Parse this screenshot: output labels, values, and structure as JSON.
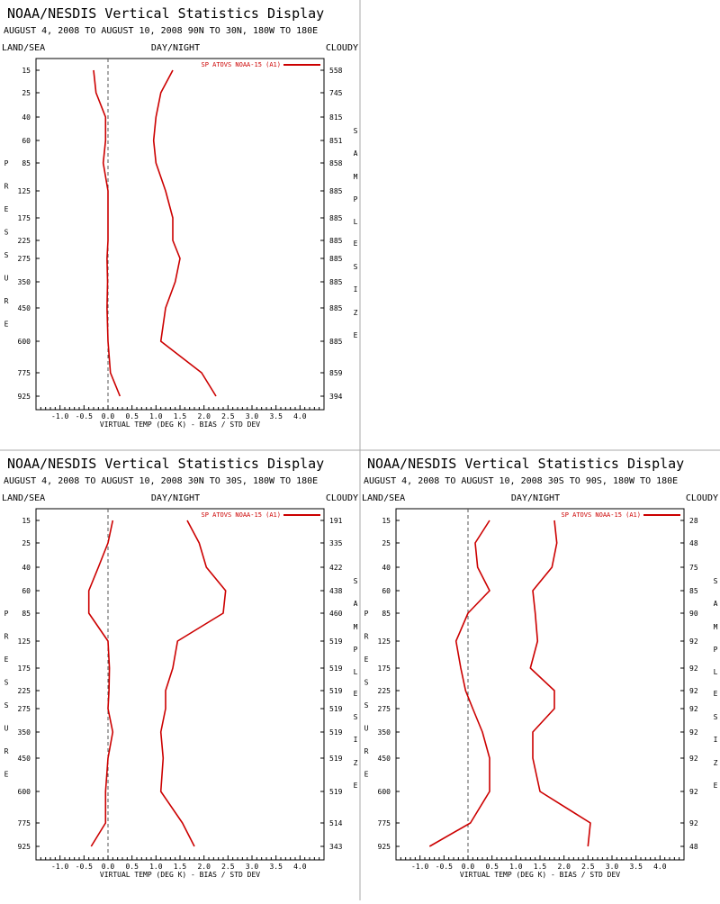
{
  "colors": {
    "series": "#cc0000",
    "axis": "#000000",
    "zero_line": "#555555",
    "divider": "#aaaaaa"
  },
  "panels": [
    {
      "title": "NOAA/NESDIS Vertical Statistics Display",
      "subtitle": "AUGUST 4, 2008 TO AUGUST 10, 2008  90N TO 30N, 180W TO 180E",
      "left_label": "LAND/SEA",
      "center_label": "DAY/NIGHT",
      "right_label": "CLOUDY",
      "left_vertical": "PRESSURE",
      "right_vertical": "SAMPLE SIZE",
      "xlabel": "VIRTUAL TEMP (DEG K) - BIAS / STD DEV",
      "legend": "SP ATOVS NOAA-15 (A1)"
    },
    {
      "title": "NOAA/NESDIS Vertical Statistics Display",
      "subtitle": "AUGUST 4, 2008 TO AUGUST 10, 2008  30N TO 30S, 180W TO 180E",
      "left_label": "LAND/SEA",
      "center_label": "DAY/NIGHT",
      "right_label": "CLOUDY",
      "left_vertical": "PRESSURE",
      "right_vertical": "SAMPLE SIZE",
      "xlabel": "VIRTUAL TEMP (DEG K) - BIAS / STD DEV",
      "legend": "SP ATOVS NOAA-15 (A1)"
    },
    {
      "title": "NOAA/NESDIS Vertical Statistics Display",
      "subtitle": "AUGUST 4, 2008 TO AUGUST 10, 2008  30S TO 90S, 180W TO 180E",
      "left_label": "LAND/SEA",
      "center_label": "DAY/NIGHT",
      "right_label": "CLOUDY",
      "left_vertical": "PRESSURE",
      "right_vertical": "SAMPLE SIZE",
      "xlabel": "VIRTUAL TEMP (DEG K) - BIAS / STD DEV",
      "legend": "SP ATOVS NOAA-15 (A1)"
    }
  ],
  "chart_data": [
    {
      "type": "line",
      "x_ticks": [
        "-1.0",
        "-0.5",
        "0.0",
        "0.5",
        "1.0",
        "1.5",
        "2.0",
        "2.5",
        "3.0",
        "3.5",
        "4.0"
      ],
      "xlim": [
        -1.5,
        4.5
      ],
      "pressure_levels": [
        "15",
        "25",
        "40",
        "60",
        "85",
        "125",
        "175",
        "225",
        "275",
        "350",
        "450",
        "600",
        "775",
        "925"
      ],
      "sample_size": [
        "558",
        "745",
        "815",
        "851",
        "858",
        "885",
        "885",
        "885",
        "885",
        "885",
        "885",
        "885",
        "859",
        "394"
      ],
      "series": [
        {
          "name": "SP ATOVS NOAA-15 (A1)",
          "role": "bias",
          "values": [
            -0.3,
            -0.25,
            -0.05,
            -0.05,
            -0.1,
            0.0,
            0.0,
            0.0,
            -0.02,
            -0.01,
            -0.02,
            0.0,
            0.05,
            0.25
          ]
        },
        {
          "name": "SP ATOVS NOAA-15 (A1)",
          "role": "std_dev",
          "values": [
            1.35,
            1.1,
            1.0,
            0.95,
            1.0,
            1.2,
            1.35,
            1.35,
            1.5,
            1.4,
            1.2,
            1.1,
            1.95,
            2.25
          ]
        }
      ]
    },
    {
      "type": "line",
      "x_ticks": [
        "-1.0",
        "-0.5",
        "0.0",
        "0.5",
        "1.0",
        "1.5",
        "2.0",
        "2.5",
        "3.0",
        "3.5",
        "4.0"
      ],
      "xlim": [
        -1.5,
        4.5
      ],
      "pressure_levels": [
        "15",
        "25",
        "40",
        "60",
        "85",
        "125",
        "175",
        "225",
        "275",
        "350",
        "450",
        "600",
        "775",
        "925"
      ],
      "sample_size": [
        "191",
        "335",
        "422",
        "438",
        "460",
        "519",
        "519",
        "519",
        "519",
        "519",
        "519",
        "519",
        "514",
        "343"
      ],
      "series": [
        {
          "name": "SP ATOVS NOAA-15 (A1)",
          "role": "bias",
          "values": [
            0.1,
            0.0,
            -0.2,
            -0.4,
            -0.4,
            0.0,
            0.03,
            0.02,
            0.0,
            0.1,
            0.0,
            -0.05,
            -0.05,
            -0.35
          ]
        },
        {
          "name": "SP ATOVS NOAA-15 (A1)",
          "role": "std_dev",
          "values": [
            1.65,
            1.9,
            2.05,
            2.45,
            2.4,
            1.45,
            1.35,
            1.2,
            1.2,
            1.1,
            1.15,
            1.1,
            1.55,
            1.8
          ]
        }
      ]
    },
    {
      "type": "line",
      "x_ticks": [
        "-1.0",
        "-0.5",
        "0.0",
        "0.5",
        "1.0",
        "1.5",
        "2.0",
        "2.5",
        "3.0",
        "3.5",
        "4.0"
      ],
      "xlim": [
        -1.5,
        4.5
      ],
      "pressure_levels": [
        "15",
        "25",
        "40",
        "60",
        "85",
        "125",
        "175",
        "225",
        "275",
        "350",
        "450",
        "600",
        "775",
        "925"
      ],
      "sample_size": [
        "28",
        "48",
        "75",
        "85",
        "90",
        "92",
        "92",
        "92",
        "92",
        "92",
        "92",
        "92",
        "92",
        "48"
      ],
      "series": [
        {
          "name": "SP ATOVS NOAA-15 (A1)",
          "role": "bias",
          "values": [
            0.45,
            0.15,
            0.2,
            0.45,
            0.0,
            -0.25,
            -0.15,
            -0.05,
            0.1,
            0.3,
            0.45,
            0.45,
            0.05,
            -0.8
          ]
        },
        {
          "name": "SP ATOVS NOAA-15 (A1)",
          "role": "std_dev",
          "values": [
            1.8,
            1.85,
            1.75,
            1.35,
            1.4,
            1.45,
            1.3,
            1.8,
            1.8,
            1.35,
            1.35,
            1.5,
            2.55,
            2.5
          ]
        }
      ]
    }
  ]
}
